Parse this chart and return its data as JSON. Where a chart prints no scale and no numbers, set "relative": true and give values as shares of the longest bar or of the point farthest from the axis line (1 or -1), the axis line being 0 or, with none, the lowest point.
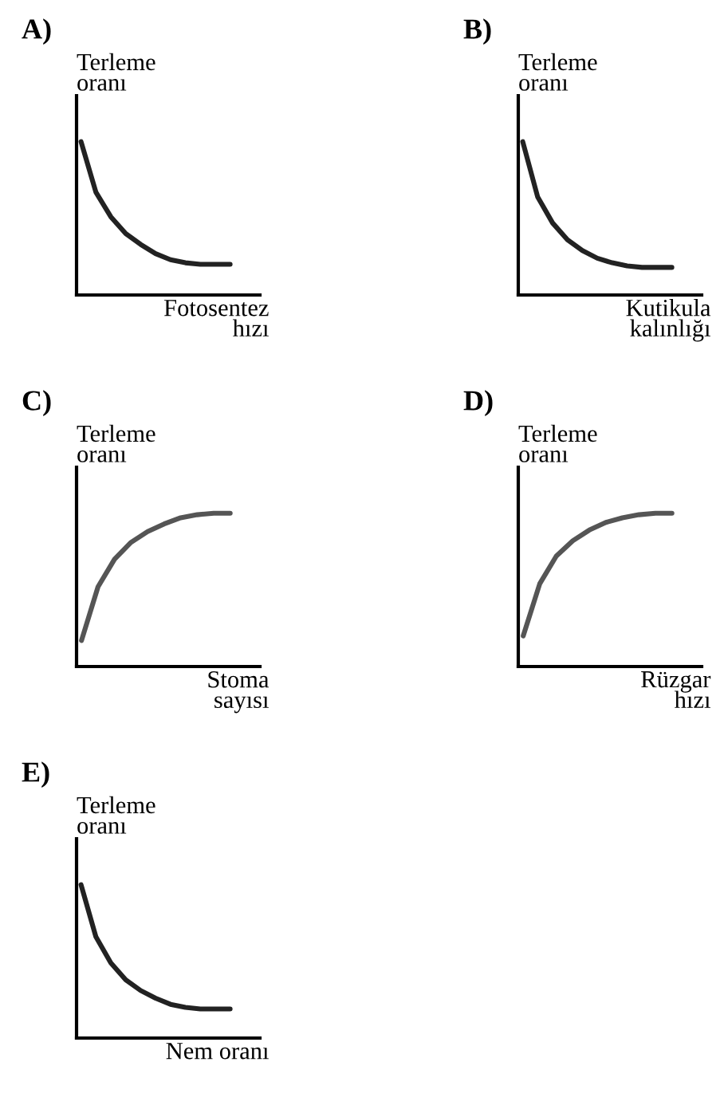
{
  "chart_data": [
    {
      "type": "line",
      "title": "A)",
      "ylabel": "Terleme\noranı",
      "xlabel": "Fotosentez\nhızı",
      "categories": [
        null,
        null,
        null,
        null,
        null,
        null,
        null,
        null,
        null,
        null,
        null
      ],
      "color": "#222222",
      "relative": true,
      "values": [
        1,
        0.67,
        0.51,
        0.4,
        0.33,
        0.27,
        0.23,
        0.21,
        0.2,
        0.2,
        0.2
      ]
    },
    {
      "type": "line",
      "title": "B)",
      "ylabel": "Terleme\noranı",
      "xlabel": "Kutikula\nkalınlığı",
      "categories": [
        null,
        null,
        null,
        null,
        null,
        null,
        null,
        null,
        null,
        null,
        null
      ],
      "color": "#222222",
      "relative": true,
      "values": [
        1,
        0.64,
        0.47,
        0.36,
        0.29,
        0.24,
        0.21,
        0.19,
        0.18,
        0.18,
        0.18
      ]
    },
    {
      "type": "line",
      "title": "C)",
      "ylabel": "Terleme\noranı",
      "xlabel": "Stoma\nsayısı",
      "categories": [
        null,
        null,
        null,
        null,
        null,
        null,
        null,
        null,
        null,
        null
      ],
      "color": "#555555",
      "relative": true,
      "values": [
        0.17,
        0.52,
        0.7,
        0.81,
        0.88,
        0.93,
        0.97,
        0.99,
        1,
        1
      ]
    },
    {
      "type": "line",
      "title": "D)",
      "ylabel": "Terleme\noranı",
      "xlabel": "Rüzgar\nhızı",
      "categories": [
        null,
        null,
        null,
        null,
        null,
        null,
        null,
        null,
        null,
        null
      ],
      "color": "#555555",
      "relative": true,
      "values": [
        0.2,
        0.54,
        0.72,
        0.82,
        0.89,
        0.94,
        0.97,
        0.99,
        1,
        1
      ]
    },
    {
      "type": "line",
      "title": "E)",
      "ylabel": "Terleme\noranı",
      "xlabel": "Nem oranı",
      "categories": [
        null,
        null,
        null,
        null,
        null,
        null,
        null,
        null,
        null,
        null,
        null
      ],
      "color": "#222222",
      "relative": true,
      "values": [
        1,
        0.66,
        0.49,
        0.38,
        0.31,
        0.26,
        0.22,
        0.2,
        0.19,
        0.19,
        0.19
      ]
    }
  ]
}
